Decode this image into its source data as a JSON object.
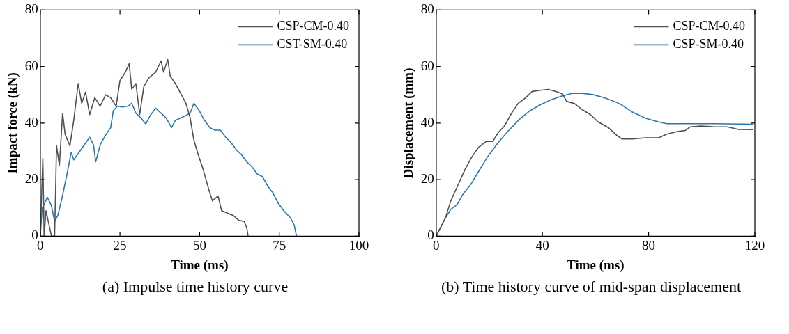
{
  "chart_data": [
    {
      "type": "line",
      "xlabel": "Time (ms)",
      "ylabel": "Impact force (kN)",
      "xlim": [
        0,
        100
      ],
      "xticks": [
        0,
        25,
        50,
        75,
        100
      ],
      "ylim": [
        0,
        80
      ],
      "yticks": [
        0,
        20,
        40,
        60,
        80
      ],
      "grid": false,
      "legend": "top right",
      "marker": "none",
      "line_style": "solid",
      "annotations": [
        "(a) Impulse time history curve"
      ],
      "series": [
        {
          "name": "CSP-CM-0.40",
          "color": "#505050",
          "x": [
            0,
            0.8,
            1.2,
            1.8,
            3.5,
            4.5,
            5.1,
            6,
            7,
            7.8,
            9.3,
            10.5,
            11.9,
            13,
            14.2,
            15.5,
            17.1,
            18.8,
            20.5,
            22.1,
            23.8,
            25,
            26.7,
            27.9,
            28.7,
            30,
            31.2,
            32.5,
            34.1,
            36.2,
            37.9,
            38.7,
            40,
            40.8,
            42.4,
            44.1,
            45.7,
            47,
            48.2,
            49.5,
            51.1,
            52.8,
            54,
            55.8,
            56.9,
            58.6,
            60.6,
            62.3,
            64,
            64.8,
            65.2
          ],
          "values": [
            0,
            27.6,
            0,
            9,
            0,
            0,
            32,
            25,
            43.5,
            36,
            32,
            41,
            54,
            47,
            51,
            43,
            49,
            46,
            50,
            49,
            46,
            55,
            58,
            61,
            52,
            54,
            43,
            53,
            56,
            58,
            62,
            58,
            62.5,
            56.5,
            54,
            50.4,
            47,
            42,
            34,
            29,
            23.7,
            16.8,
            12.5,
            14.2,
            9,
            8.2,
            7.3,
            5.6,
            5.2,
            3,
            0
          ]
        },
        {
          "name": "CST-SM-0.40",
          "color": "#2878b0",
          "x": [
            0,
            0.6,
            1.4,
            2.2,
            3.5,
            4.5,
            5.5,
            6.8,
            8.4,
            9.7,
            10.5,
            12.2,
            13.8,
            15.5,
            16.7,
            17.4,
            18.8,
            20.5,
            22.1,
            22.9,
            24.2,
            25.8,
            27.5,
            28.7,
            30,
            31.6,
            33.1,
            34.5,
            36.2,
            37.9,
            39.5,
            41.2,
            42.4,
            44.1,
            45.7,
            47,
            48.2,
            49.9,
            51.5,
            53.2,
            54.8,
            56.5,
            58.2,
            59.8,
            61.5,
            63.1,
            64.8,
            66.4,
            68.1,
            69.7,
            71.4,
            73.1,
            74.7,
            76.4,
            78.5,
            79.7,
            80.4
          ],
          "values": [
            0,
            10,
            11.6,
            13.8,
            10.8,
            5.2,
            7.3,
            13.4,
            22,
            29.7,
            27,
            29.7,
            32.3,
            35,
            32.3,
            26.3,
            32.3,
            35.8,
            38.4,
            44.4,
            46,
            45.7,
            46,
            47,
            43.5,
            41.8,
            39.7,
            42.7,
            45.3,
            43.5,
            41.8,
            38.4,
            41,
            41.8,
            42.7,
            43.5,
            47,
            44.4,
            41,
            38.4,
            37.5,
            37.5,
            35,
            33.2,
            30.6,
            28.9,
            26.3,
            24.6,
            22,
            21.1,
            17.7,
            15.1,
            11.6,
            9,
            6.5,
            3.9,
            0
          ]
        }
      ]
    },
    {
      "type": "line",
      "xlabel": "Time (ms)",
      "ylabel": "Displacement (mm)",
      "xlim": [
        0,
        120
      ],
      "xticks": [
        0,
        40,
        80,
        120
      ],
      "ylim": [
        0,
        80
      ],
      "yticks": [
        0,
        20,
        40,
        60,
        80
      ],
      "grid": false,
      "legend": "top right",
      "marker": "none",
      "line_style": "solid",
      "annotations": [
        "(b) Time history curve of mid-span displacement"
      ],
      "series": [
        {
          "name": "CSP-CM-0.40",
          "color": "#505050",
          "x": [
            0,
            3.5,
            5.5,
            8.4,
            10.9,
            13.4,
            15.9,
            18.8,
            21.3,
            23.3,
            25.8,
            28.3,
            30.8,
            33.7,
            36.2,
            39.2,
            42.2,
            45.1,
            47.6,
            49.1,
            52.1,
            55.1,
            58.1,
            61,
            65,
            68,
            69.9,
            73.9,
            78.9,
            83.8,
            86.8,
            90.8,
            93.8,
            95.7,
            99.7,
            104.7,
            109.6,
            113.6,
            119.5
          ],
          "values": [
            0,
            6.5,
            12.5,
            18.5,
            23.7,
            28,
            31.4,
            33.5,
            33.5,
            36.6,
            39.1,
            43.4,
            46.9,
            49,
            51.2,
            51.6,
            51.9,
            51.2,
            50.3,
            47.7,
            46.9,
            44.7,
            43,
            40.4,
            38.3,
            35.7,
            34.4,
            34.4,
            34.8,
            34.8,
            36.1,
            37,
            37.4,
            38.7,
            39,
            38.7,
            38.7,
            37.8,
            37.7
          ]
        },
        {
          "name": "CSP-SM-0.40",
          "color": "#2878b0",
          "x": [
            0,
            3.5,
            5.5,
            7.9,
            9.9,
            12.9,
            15.9,
            19.3,
            23.3,
            27.3,
            31.3,
            35.2,
            39.2,
            43.2,
            47.1,
            51.1,
            55.1,
            59,
            64,
            69,
            73.9,
            78.9,
            83.8,
            86.8,
            94.7,
            104.7,
            119.5
          ],
          "values": [
            0,
            6.5,
            9.5,
            11.2,
            14.6,
            18.1,
            22.8,
            28,
            33.1,
            37.4,
            41.3,
            44.3,
            46.5,
            48.2,
            49.5,
            50.5,
            50.5,
            50.1,
            48.8,
            46.9,
            43.9,
            41.7,
            40.4,
            39.8,
            39.8,
            39.8,
            39.6
          ]
        }
      ]
    }
  ]
}
